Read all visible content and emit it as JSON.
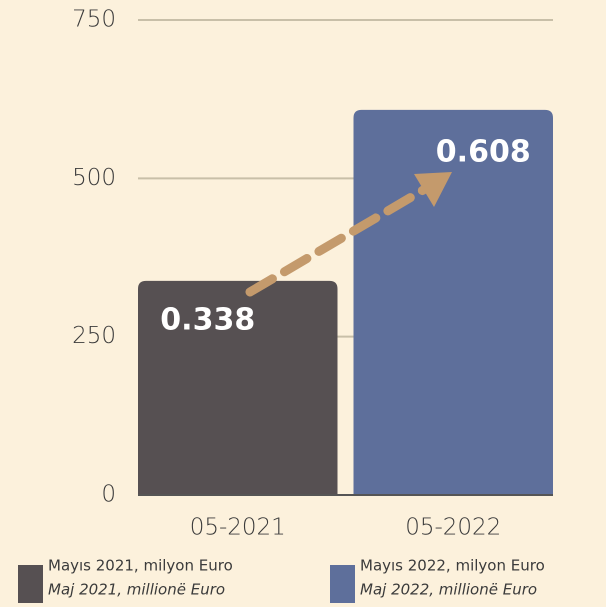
{
  "chart_data": {
    "type": "bar",
    "categories": [
      "05-2021",
      "05-2022"
    ],
    "values": [
      338,
      608
    ],
    "value_labels": [
      "0.338",
      "0.608"
    ],
    "colors": [
      "#565052",
      "#5e6f9b"
    ],
    "ylim": [
      0,
      750
    ],
    "yticks": [
      0,
      250,
      500,
      750
    ],
    "grid": true,
    "legend": [
      {
        "line1": "Mayıs 2021, milyon Euro",
        "line2": "Maj 2021, millionë Euro"
      },
      {
        "line1": "Mayıs 2022, milyon Euro",
        "line2": "Maj 2022, millionë Euro"
      }
    ]
  }
}
